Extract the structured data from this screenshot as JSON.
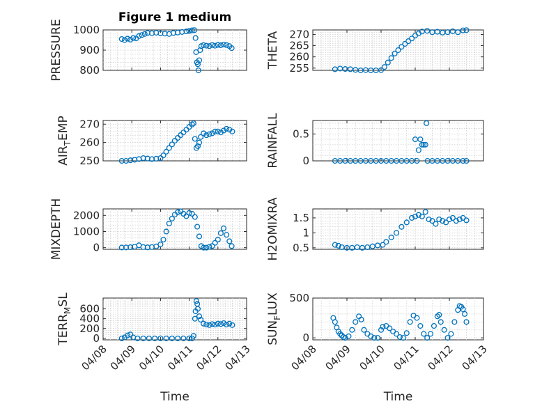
{
  "figure_title": "Figure 1 medium",
  "marker_color": "#0072BD",
  "chart_data": [
    {
      "type": "scatter",
      "name": "pressure",
      "ylabel": "PRESSURE",
      "xlabel": "",
      "xlim": [
        0,
        5
      ],
      "ylim": [
        800,
        1000
      ],
      "yticks": [
        {
          "v": 800,
          "label": "800"
        },
        {
          "v": 900,
          "label": "900"
        },
        {
          "v": 1000,
          "label": "1000"
        }
      ],
      "xticks": [],
      "grid": true,
      "points": [
        [
          0.65,
          955
        ],
        [
          0.75,
          950
        ],
        [
          0.85,
          957
        ],
        [
          0.95,
          952
        ],
        [
          1.05,
          960
        ],
        [
          1.15,
          958
        ],
        [
          1.25,
          970
        ],
        [
          1.35,
          975
        ],
        [
          1.45,
          980
        ],
        [
          1.55,
          985
        ],
        [
          1.7,
          984
        ],
        [
          1.85,
          986
        ],
        [
          2.0,
          983
        ],
        [
          2.15,
          982
        ],
        [
          2.3,
          980
        ],
        [
          2.45,
          985
        ],
        [
          2.6,
          987
        ],
        [
          2.75,
          990
        ],
        [
          2.9,
          993
        ],
        [
          3.0,
          995
        ],
        [
          3.1,
          998
        ],
        [
          3.18,
          999
        ],
        [
          3.22,
          960
        ],
        [
          3.24,
          890
        ],
        [
          3.27,
          840
        ],
        [
          3.3,
          830
        ],
        [
          3.32,
          800
        ],
        [
          3.35,
          850
        ],
        [
          3.38,
          900
        ],
        [
          3.42,
          920
        ],
        [
          3.5,
          925
        ],
        [
          3.6,
          922
        ],
        [
          3.7,
          920
        ],
        [
          3.8,
          925
        ],
        [
          3.9,
          922
        ],
        [
          4.0,
          926
        ],
        [
          4.1,
          924
        ],
        [
          4.2,
          928
        ],
        [
          4.3,
          925
        ],
        [
          4.4,
          920
        ],
        [
          4.48,
          910
        ]
      ]
    },
    {
      "type": "scatter",
      "name": "theta",
      "ylabel": "THETA",
      "xlabel": "",
      "xlim": [
        0,
        5
      ],
      "ylim": [
        254,
        272
      ],
      "yticks": [
        {
          "v": 255,
          "label": "255"
        },
        {
          "v": 260,
          "label": "260"
        },
        {
          "v": 265,
          "label": "265"
        },
        {
          "v": 270,
          "label": "270"
        }
      ],
      "xticks": [],
      "grid": true,
      "points": [
        [
          0.65,
          254.5
        ],
        [
          0.8,
          254.8
        ],
        [
          0.95,
          254.6
        ],
        [
          1.1,
          254.5
        ],
        [
          1.25,
          254.2
        ],
        [
          1.4,
          254.0
        ],
        [
          1.55,
          254.1
        ],
        [
          1.7,
          254.0
        ],
        [
          1.85,
          254.0
        ],
        [
          2.0,
          254.1
        ],
        [
          2.1,
          255.5
        ],
        [
          2.2,
          257.5
        ],
        [
          2.3,
          259.5
        ],
        [
          2.4,
          261.5
        ],
        [
          2.5,
          263.0
        ],
        [
          2.6,
          264.5
        ],
        [
          2.7,
          265.8
        ],
        [
          2.8,
          267.0
        ],
        [
          2.9,
          268.2
        ],
        [
          3.0,
          269.5
        ],
        [
          3.1,
          270.5
        ],
        [
          3.2,
          271.3
        ],
        [
          3.35,
          271.6
        ],
        [
          3.5,
          271.0
        ],
        [
          3.65,
          271.2
        ],
        [
          3.8,
          270.8
        ],
        [
          3.95,
          271.0
        ],
        [
          4.1,
          271.4
        ],
        [
          4.25,
          271.0
        ],
        [
          4.4,
          271.8
        ],
        [
          4.5,
          271.9
        ]
      ]
    },
    {
      "type": "scatter",
      "name": "air-temp",
      "ylabel": "AIR",
      "ylabel_sub": "T",
      "ylabel_tail": "EMP",
      "xlabel": "",
      "xlim": [
        0,
        5
      ],
      "ylim": [
        250,
        272
      ],
      "yticks": [
        {
          "v": 250,
          "label": "250"
        },
        {
          "v": 260,
          "label": "260"
        },
        {
          "v": 270,
          "label": "270"
        }
      ],
      "xticks": [],
      "grid": true,
      "points": [
        [
          0.65,
          250
        ],
        [
          0.8,
          250
        ],
        [
          0.95,
          250.3
        ],
        [
          1.1,
          250.6
        ],
        [
          1.25,
          251
        ],
        [
          1.4,
          251.5
        ],
        [
          1.55,
          251.3
        ],
        [
          1.7,
          251
        ],
        [
          1.85,
          251.2
        ],
        [
          2.0,
          251.5
        ],
        [
          2.1,
          253
        ],
        [
          2.2,
          255
        ],
        [
          2.3,
          257
        ],
        [
          2.4,
          259
        ],
        [
          2.5,
          261
        ],
        [
          2.6,
          262.5
        ],
        [
          2.7,
          264
        ],
        [
          2.8,
          265.5
        ],
        [
          2.9,
          267
        ],
        [
          3.0,
          268.5
        ],
        [
          3.1,
          269.8
        ],
        [
          3.15,
          270.5
        ],
        [
          3.2,
          262
        ],
        [
          3.25,
          257
        ],
        [
          3.3,
          258
        ],
        [
          3.35,
          260
        ],
        [
          3.4,
          263
        ],
        [
          3.5,
          265
        ],
        [
          3.6,
          264
        ],
        [
          3.7,
          264.5
        ],
        [
          3.8,
          265
        ],
        [
          3.9,
          266
        ],
        [
          4.0,
          266
        ],
        [
          4.1,
          265.5
        ],
        [
          4.2,
          266.5
        ],
        [
          4.3,
          267.5
        ],
        [
          4.4,
          267
        ],
        [
          4.5,
          266
        ]
      ]
    },
    {
      "type": "scatter",
      "name": "rainfall",
      "ylabel": "RAINFALL",
      "xlabel": "",
      "xlim": [
        0,
        5
      ],
      "ylim": [
        0,
        0.75
      ],
      "yticks": [
        {
          "v": 0,
          "label": "0"
        },
        {
          "v": 0.5,
          "label": "0.5"
        }
      ],
      "xticks": [],
      "grid": true,
      "points": [
        [
          0.65,
          0
        ],
        [
          0.8,
          0
        ],
        [
          0.95,
          0
        ],
        [
          1.1,
          0
        ],
        [
          1.25,
          0
        ],
        [
          1.4,
          0
        ],
        [
          1.55,
          0
        ],
        [
          1.7,
          0
        ],
        [
          1.85,
          0
        ],
        [
          2.0,
          0
        ],
        [
          2.15,
          0
        ],
        [
          2.3,
          0
        ],
        [
          2.45,
          0
        ],
        [
          2.6,
          0
        ],
        [
          2.75,
          0
        ],
        [
          2.9,
          0
        ],
        [
          3.0,
          0.4
        ],
        [
          3.05,
          0
        ],
        [
          3.1,
          0.2
        ],
        [
          3.15,
          0.4
        ],
        [
          3.2,
          0.3
        ],
        [
          3.25,
          0.3
        ],
        [
          3.3,
          0.3
        ],
        [
          3.33,
          0.7
        ],
        [
          3.36,
          0
        ],
        [
          3.5,
          0
        ],
        [
          3.65,
          0
        ],
        [
          3.8,
          0
        ],
        [
          3.95,
          0
        ],
        [
          4.1,
          0
        ],
        [
          4.25,
          0
        ],
        [
          4.4,
          0
        ],
        [
          4.5,
          0
        ]
      ]
    },
    {
      "type": "scatter",
      "name": "mixdepth",
      "ylabel": "MIXDEPTH",
      "xlabel": "",
      "xlim": [
        0,
        5
      ],
      "ylim": [
        -100,
        2400
      ],
      "yticks": [
        {
          "v": 0,
          "label": "0"
        },
        {
          "v": 1000,
          "label": "1000"
        },
        {
          "v": 2000,
          "label": "2000"
        }
      ],
      "xticks": [],
      "grid": true,
      "points": [
        [
          0.65,
          10
        ],
        [
          0.8,
          15
        ],
        [
          0.95,
          30
        ],
        [
          1.1,
          60
        ],
        [
          1.25,
          150
        ],
        [
          1.4,
          40
        ],
        [
          1.55,
          20
        ],
        [
          1.7,
          40
        ],
        [
          1.85,
          80
        ],
        [
          2.0,
          200
        ],
        [
          2.1,
          500
        ],
        [
          2.2,
          1000
        ],
        [
          2.3,
          1500
        ],
        [
          2.4,
          1800
        ],
        [
          2.5,
          2050
        ],
        [
          2.6,
          2200
        ],
        [
          2.7,
          2250
        ],
        [
          2.8,
          2100
        ],
        [
          2.9,
          1950
        ],
        [
          3.0,
          2150
        ],
        [
          3.1,
          2100
        ],
        [
          3.2,
          1900
        ],
        [
          3.28,
          1300
        ],
        [
          3.35,
          700
        ],
        [
          3.42,
          100
        ],
        [
          3.5,
          0
        ],
        [
          3.6,
          0
        ],
        [
          3.7,
          50
        ],
        [
          3.8,
          100
        ],
        [
          3.9,
          300
        ],
        [
          4.0,
          500
        ],
        [
          4.1,
          900
        ],
        [
          4.2,
          1200
        ],
        [
          4.3,
          800
        ],
        [
          4.4,
          400
        ],
        [
          4.48,
          100
        ]
      ]
    },
    {
      "type": "scatter",
      "name": "h2omixra",
      "ylabel": "H2OMIXRA",
      "xlabel": "",
      "xlim": [
        0,
        5
      ],
      "ylim": [
        0.45,
        1.8
      ],
      "yticks": [
        {
          "v": 0.5,
          "label": "0.5"
        },
        {
          "v": 1,
          "label": "1"
        },
        {
          "v": 1.5,
          "label": "1.5"
        }
      ],
      "xticks": [],
      "grid": true,
      "points": [
        [
          0.65,
          0.6
        ],
        [
          0.75,
          0.57
        ],
        [
          0.85,
          0.52
        ],
        [
          1.0,
          0.5
        ],
        [
          1.15,
          0.5
        ],
        [
          1.3,
          0.52
        ],
        [
          1.45,
          0.5
        ],
        [
          1.6,
          0.52
        ],
        [
          1.75,
          0.55
        ],
        [
          1.9,
          0.58
        ],
        [
          2.05,
          0.6
        ],
        [
          2.15,
          0.7
        ],
        [
          2.3,
          0.85
        ],
        [
          2.45,
          1.0
        ],
        [
          2.6,
          1.2
        ],
        [
          2.75,
          1.35
        ],
        [
          2.9,
          1.5
        ],
        [
          3.0,
          1.55
        ],
        [
          3.1,
          1.6
        ],
        [
          3.2,
          1.55
        ],
        [
          3.3,
          1.7
        ],
        [
          3.4,
          1.45
        ],
        [
          3.5,
          1.4
        ],
        [
          3.6,
          1.3
        ],
        [
          3.7,
          1.45
        ],
        [
          3.8,
          1.4
        ],
        [
          3.9,
          1.35
        ],
        [
          4.0,
          1.45
        ],
        [
          4.1,
          1.5
        ],
        [
          4.2,
          1.4
        ],
        [
          4.3,
          1.45
        ],
        [
          4.4,
          1.5
        ],
        [
          4.5,
          1.42
        ]
      ]
    },
    {
      "type": "scatter",
      "name": "terr-msl",
      "ylabel": "TERR",
      "ylabel_sub": "M",
      "ylabel_tail": "SL",
      "xlabel": "Time",
      "xlim": [
        0,
        5
      ],
      "ylim": [
        -30,
        820
      ],
      "yticks": [
        {
          "v": 0,
          "label": "0"
        },
        {
          "v": 200,
          "label": "200"
        },
        {
          "v": 400,
          "label": "400"
        },
        {
          "v": 600,
          "label": "600"
        }
      ],
      "xticks": [
        {
          "v": 0,
          "label": "04/08"
        },
        {
          "v": 1,
          "label": "04/09"
        },
        {
          "v": 2,
          "label": "04/10"
        },
        {
          "v": 3,
          "label": "04/11"
        },
        {
          "v": 4,
          "label": "04/12"
        },
        {
          "v": 5,
          "label": "04/13"
        }
      ],
      "grid": true,
      "points": [
        [
          0.65,
          0
        ],
        [
          0.75,
          20
        ],
        [
          0.85,
          60
        ],
        [
          0.95,
          80
        ],
        [
          1.05,
          20
        ],
        [
          1.2,
          0
        ],
        [
          1.4,
          0
        ],
        [
          1.6,
          0
        ],
        [
          1.8,
          0
        ],
        [
          2.0,
          0
        ],
        [
          2.2,
          0
        ],
        [
          2.4,
          0
        ],
        [
          2.6,
          0
        ],
        [
          2.8,
          0
        ],
        [
          3.0,
          0
        ],
        [
          3.1,
          0
        ],
        [
          3.15,
          50
        ],
        [
          3.2,
          400
        ],
        [
          3.22,
          550
        ],
        [
          3.25,
          760
        ],
        [
          3.28,
          700
        ],
        [
          3.3,
          600
        ],
        [
          3.35,
          450
        ],
        [
          3.4,
          380
        ],
        [
          3.5,
          300
        ],
        [
          3.6,
          280
        ],
        [
          3.7,
          270
        ],
        [
          3.8,
          290
        ],
        [
          3.9,
          280
        ],
        [
          4.0,
          300
        ],
        [
          4.1,
          290
        ],
        [
          4.2,
          310
        ],
        [
          4.3,
          280
        ],
        [
          4.4,
          300
        ],
        [
          4.5,
          270
        ]
      ]
    },
    {
      "type": "scatter",
      "name": "sun-flux",
      "ylabel": "SUN",
      "ylabel_sub": "F",
      "ylabel_tail": "LUX",
      "xlabel": "Time",
      "xlim": [
        0,
        5
      ],
      "ylim": [
        -25,
        500
      ],
      "yticks": [
        {
          "v": 0,
          "label": "0"
        },
        {
          "v": 500,
          "label": "500"
        }
      ],
      "xticks": [
        {
          "v": 0,
          "label": "04/08"
        },
        {
          "v": 1,
          "label": "04/09"
        },
        {
          "v": 2,
          "label": "04/10"
        },
        {
          "v": 3,
          "label": "04/11"
        },
        {
          "v": 4,
          "label": "04/12"
        },
        {
          "v": 5,
          "label": "04/13"
        }
      ],
      "grid": true,
      "points": [
        [
          0.6,
          250
        ],
        [
          0.65,
          200
        ],
        [
          0.7,
          130
        ],
        [
          0.75,
          80
        ],
        [
          0.8,
          50
        ],
        [
          0.85,
          30
        ],
        [
          0.9,
          10
        ],
        [
          0.95,
          0
        ],
        [
          1.05,
          20
        ],
        [
          1.15,
          100
        ],
        [
          1.25,
          200
        ],
        [
          1.35,
          270
        ],
        [
          1.42,
          230
        ],
        [
          1.5,
          100
        ],
        [
          1.6,
          50
        ],
        [
          1.7,
          20
        ],
        [
          1.8,
          0
        ],
        [
          1.9,
          0
        ],
        [
          2.0,
          100
        ],
        [
          2.05,
          140
        ],
        [
          2.15,
          150
        ],
        [
          2.25,
          120
        ],
        [
          2.35,
          80
        ],
        [
          2.45,
          50
        ],
        [
          2.55,
          10
        ],
        [
          2.65,
          0
        ],
        [
          2.75,
          60
        ],
        [
          2.85,
          200
        ],
        [
          2.95,
          280
        ],
        [
          3.05,
          250
        ],
        [
          3.15,
          150
        ],
        [
          3.25,
          50
        ],
        [
          3.35,
          0
        ],
        [
          3.45,
          50
        ],
        [
          3.55,
          150
        ],
        [
          3.65,
          270
        ],
        [
          3.7,
          290
        ],
        [
          3.75,
          200
        ],
        [
          3.85,
          100
        ],
        [
          3.95,
          0
        ],
        [
          4.05,
          50
        ],
        [
          4.15,
          200
        ],
        [
          4.25,
          350
        ],
        [
          4.3,
          400
        ],
        [
          4.35,
          390
        ],
        [
          4.4,
          360
        ],
        [
          4.45,
          300
        ],
        [
          4.5,
          200
        ]
      ]
    }
  ]
}
